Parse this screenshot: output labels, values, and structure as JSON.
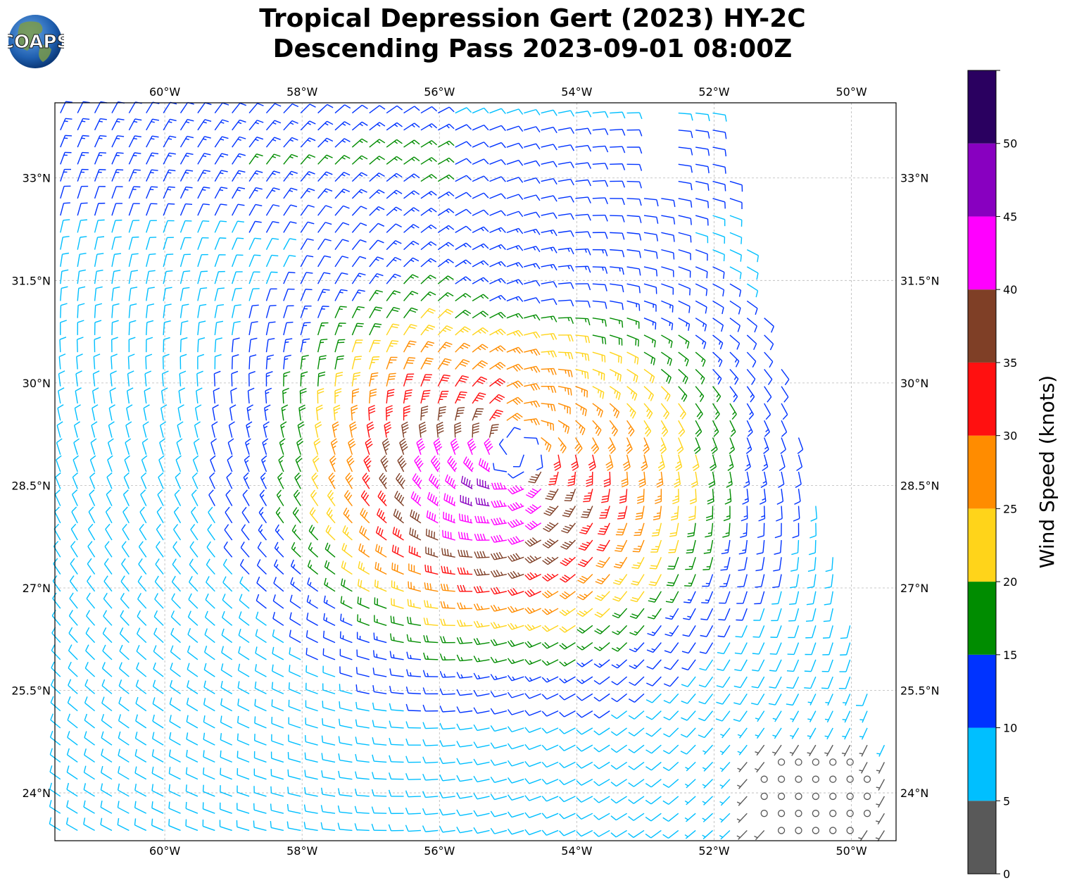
{
  "header": {
    "title_line1": "Tropical Depression Gert (2023) HY-2C",
    "title_line2": "Descending Pass 2023-09-01 08:00Z",
    "logo_text": "COAPS"
  },
  "map": {
    "lon_range": [
      -61.6,
      -49.35
    ],
    "lat_range": [
      23.3,
      34.1
    ],
    "lon_ticks": [
      {
        "value": -60,
        "label": "60°W"
      },
      {
        "value": -58,
        "label": "58°W"
      },
      {
        "value": -56,
        "label": "56°W"
      },
      {
        "value": -54,
        "label": "54°W"
      },
      {
        "value": -52,
        "label": "52°W"
      },
      {
        "value": -50,
        "label": "50°W"
      }
    ],
    "lat_ticks": [
      {
        "value": 24,
        "label": "24°N"
      },
      {
        "value": 25.5,
        "label": "25.5°N"
      },
      {
        "value": 27,
        "label": "27°N"
      },
      {
        "value": 28.5,
        "label": "28.5°N"
      },
      {
        "value": 30,
        "label": "30°N"
      },
      {
        "value": 31.5,
        "label": "31.5°N"
      },
      {
        "value": 33,
        "label": "33°N"
      }
    ],
    "gridlines": true,
    "storm_center": {
      "lon": -54.85,
      "lat": 29.0
    },
    "wind_barbs": "dense vector field in knots, cyclonic circulation around the storm center"
  },
  "colorbar": {
    "label": "Wind Speed (knots)",
    "tick_labels": [
      "0",
      "5",
      "10",
      "15",
      "20",
      "25",
      "30",
      "35",
      "40",
      "45",
      "50"
    ],
    "bins": [
      {
        "min": 0,
        "max": 5,
        "color": "#595959"
      },
      {
        "min": 5,
        "max": 10,
        "color": "#00bfff"
      },
      {
        "min": 10,
        "max": 15,
        "color": "#0033ff"
      },
      {
        "min": 15,
        "max": 20,
        "color": "#008c00"
      },
      {
        "min": 20,
        "max": 25,
        "color": "#ffd41a"
      },
      {
        "min": 25,
        "max": 30,
        "color": "#ff8c00"
      },
      {
        "min": 30,
        "max": 35,
        "color": "#ff1010"
      },
      {
        "min": 35,
        "max": 40,
        "color": "#7f3f26"
      },
      {
        "min": 40,
        "max": 45,
        "color": "#ff00ff"
      },
      {
        "min": 45,
        "max": 50,
        "color": "#8800c0"
      },
      {
        "min": 50,
        "max": 55,
        "color": "#2a0060"
      }
    ]
  }
}
